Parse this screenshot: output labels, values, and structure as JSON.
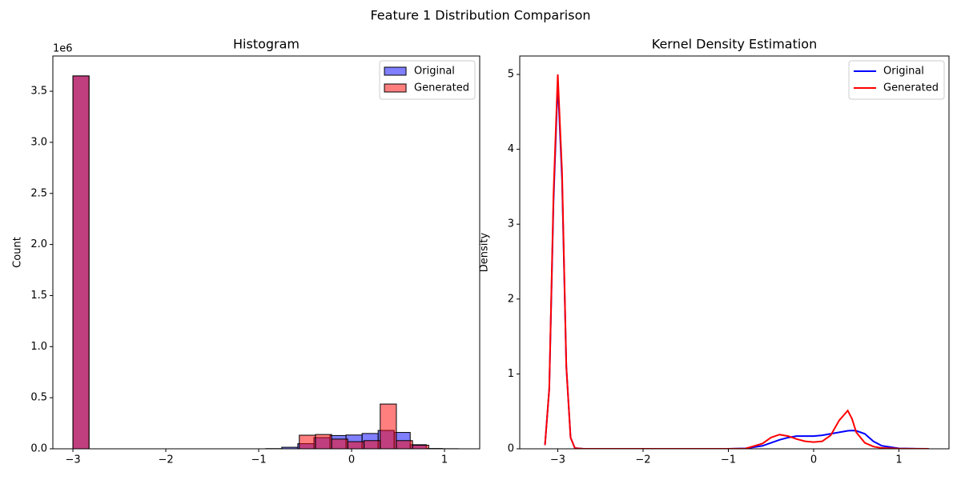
{
  "title": "Feature 1 Distribution Comparison",
  "chart_data": [
    {
      "type": "histogram",
      "title": "Histogram",
      "y_label": "Count",
      "y_offset_label": "1e6",
      "xlim": [
        -3.216,
        1.379
      ],
      "ylim": [
        0,
        3845000
      ],
      "xticks": [
        {
          "value": -3,
          "label": "−3"
        },
        {
          "value": -2,
          "label": "−2"
        },
        {
          "value": -1,
          "label": "−1"
        },
        0,
        1
      ],
      "yticks": [
        {
          "value": 0,
          "label": "0.0"
        },
        {
          "value": 500000,
          "label": "0.5"
        },
        {
          "value": 1000000,
          "label": "1.0"
        },
        {
          "value": 1500000,
          "label": "1.5"
        },
        {
          "value": 2000000,
          "label": "2.0"
        },
        {
          "value": 2500000,
          "label": "2.5"
        },
        {
          "value": 3000000,
          "label": "3.0"
        },
        {
          "value": 3500000,
          "label": "3.5"
        }
      ],
      "legend": "upper right",
      "alpha": 0.5,
      "edge_color": "#000000",
      "series": [
        {
          "name": "Original",
          "color": "#0000ff",
          "bins": [
            -3,
            -2.827,
            -2.654,
            -2.481,
            -2.308,
            -2.136,
            -1.963,
            -1.79,
            -1.617,
            -1.444,
            -1.271,
            -1.098,
            -0.925,
            -0.752,
            -0.579,
            -0.406,
            -0.233,
            -0.06,
            0.113,
            0.286,
            0.458,
            0.631,
            0.804,
            0.977,
            1.15
          ],
          "values": [
            3650000,
            0,
            0,
            0,
            0,
            0,
            0,
            0,
            0,
            0,
            0,
            0,
            2000,
            15000,
            50000,
            110000,
            130000,
            135000,
            150000,
            180000,
            160000,
            40000,
            3000,
            1000
          ]
        },
        {
          "name": "Generated",
          "color": "#ff0000",
          "bins": [
            -3,
            -2.826,
            -2.652,
            -2.478,
            -2.304,
            -2.13,
            -1.955,
            -1.781,
            -1.607,
            -1.433,
            -1.259,
            -1.085,
            -0.911,
            -0.737,
            -0.563,
            -0.389,
            -0.215,
            -0.041,
            0.134,
            0.308,
            0.482,
            0.656,
            0.83
          ],
          "values": [
            3650000,
            0,
            0,
            0,
            0,
            0,
            0,
            0,
            0,
            0,
            0,
            0,
            0,
            0,
            133000,
            140000,
            95000,
            70000,
            80000,
            438000,
            80000,
            35000
          ]
        }
      ]
    },
    {
      "type": "line",
      "title": "Kernel Density Estimation",
      "y_label": "Density",
      "xlim": [
        -3.446,
        1.587
      ],
      "ylim": [
        0,
        5.246
      ],
      "xticks": [
        {
          "value": -3,
          "label": "−3"
        },
        {
          "value": -2,
          "label": "−2"
        },
        {
          "value": -1,
          "label": "−1"
        },
        0,
        1
      ],
      "yticks": [
        0,
        1,
        2,
        3,
        4,
        5
      ],
      "legend": "upper right",
      "x": [
        -3.15,
        -3.1,
        -3.05,
        -3.0,
        -2.95,
        -2.9,
        -2.85,
        -2.8,
        -2.7,
        -2.0,
        -1.0,
        -0.8,
        -0.6,
        -0.5,
        -0.4,
        -0.3,
        -0.2,
        -0.1,
        0,
        0.1,
        0.2,
        0.3,
        0.4,
        0.45,
        0.5,
        0.6,
        0.7,
        0.8,
        1.0,
        1.2,
        1.35
      ],
      "series": [
        {
          "name": "Original",
          "color": "#0000ff",
          "values": [
            0.05,
            0.8,
            3.3,
            4.9,
            3.6,
            1.1,
            0.15,
            0.01,
            0,
            0,
            0,
            0.005,
            0.04,
            0.08,
            0.12,
            0.15,
            0.17,
            0.17,
            0.17,
            0.18,
            0.2,
            0.22,
            0.24,
            0.245,
            0.24,
            0.2,
            0.1,
            0.04,
            0.005,
            0.001,
            0
          ]
        },
        {
          "name": "Generated",
          "color": "#ff0000",
          "values": [
            0.05,
            0.8,
            3.4,
            5.0,
            3.7,
            1.1,
            0.15,
            0.01,
            0,
            0,
            0,
            0.003,
            0.07,
            0.15,
            0.19,
            0.17,
            0.13,
            0.1,
            0.09,
            0.1,
            0.18,
            0.38,
            0.51,
            0.4,
            0.22,
            0.08,
            0.03,
            0.01,
            0.002,
            0,
            0
          ]
        }
      ]
    }
  ]
}
